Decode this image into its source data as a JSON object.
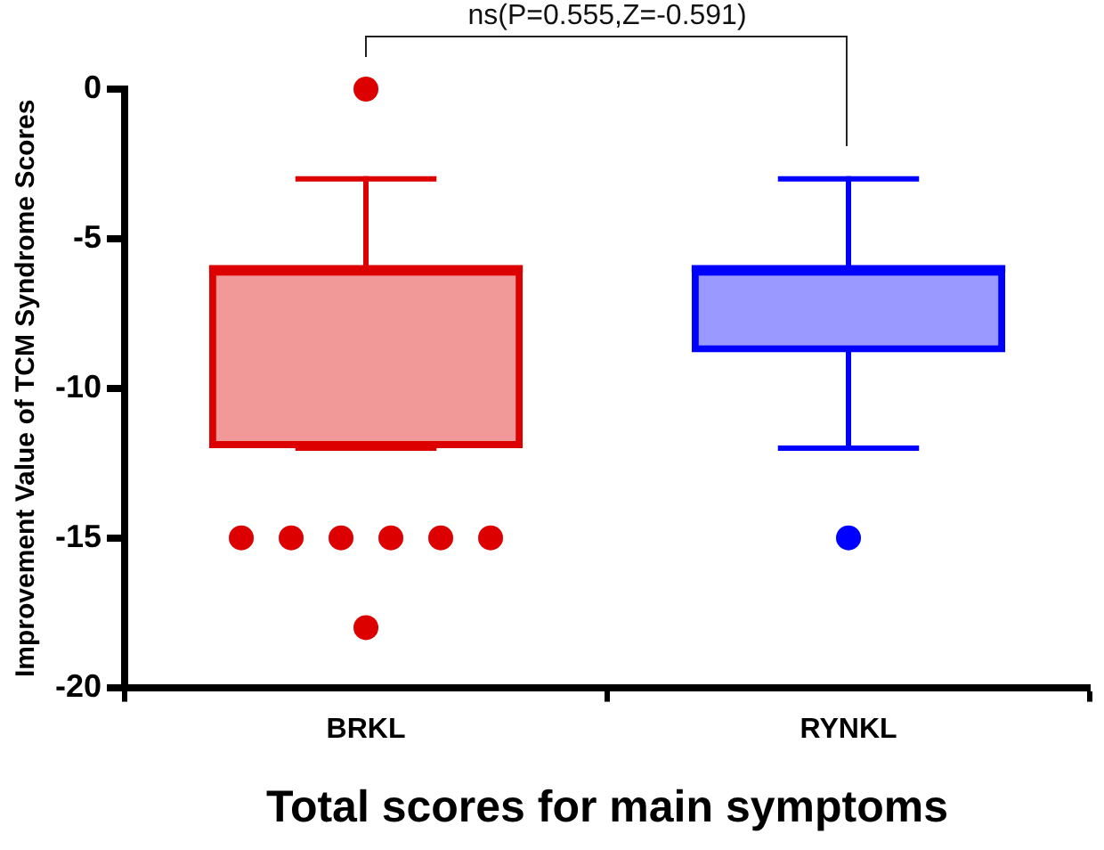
{
  "chart_data": {
    "type": "box",
    "categories": [
      "BRKL",
      "RYNKL"
    ],
    "colors": [
      "#dd0000",
      "#0000ff"
    ],
    "boxes": [
      {
        "low": -12,
        "q1": -12,
        "median": -6,
        "q3": -6,
        "high": -3,
        "outliers": [
          0,
          -15,
          -15,
          -15,
          -15,
          -15,
          -15,
          -18
        ]
      },
      {
        "low": -12,
        "q1": -8.8,
        "median": -6,
        "q3": -6,
        "high": -3,
        "outliers": [
          -15
        ]
      }
    ],
    "ylim": [
      -20,
      0
    ],
    "yticks": [
      0,
      -5,
      -10,
      -15,
      -20
    ],
    "xlabel": "Total scores for main symptoms",
    "ylabel": "Improvement Value of TCM Syndrome Scores",
    "annotations": [
      "ns(P=0.555,Z=-0.591)"
    ],
    "grid": false,
    "legend": false
  }
}
